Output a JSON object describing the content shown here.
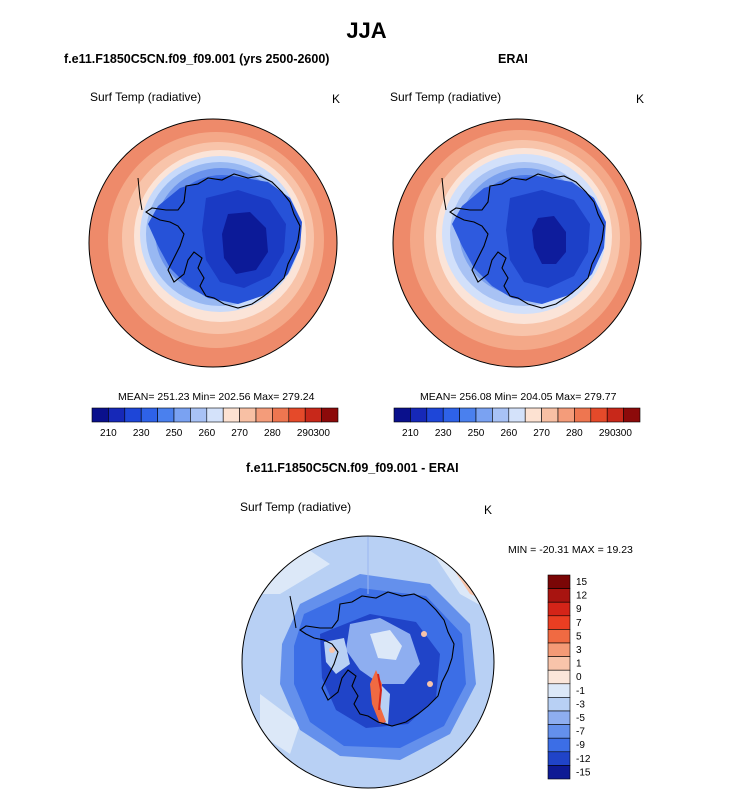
{
  "season_title": "JJA",
  "panels": {
    "model": {
      "title": "f.e11.F1850C5CN.f09_f09.001 (yrs 2500-2600)",
      "variable_label": "Surf Temp (radiative)",
      "units": "K",
      "stats": "MEAN= 251.23  Min= 202.56  Max= 279.24"
    },
    "obs": {
      "title": "ERAI",
      "variable_label": "Surf Temp (radiative)",
      "units": "K",
      "stats": "MEAN= 256.08  Min= 204.05  Max= 279.77"
    },
    "diff": {
      "title": "f.e11.F1850C5CN.f09_f09.001 - ERAI",
      "variable_label": "Surf Temp (radiative)",
      "units": "K",
      "stats": "MIN = -20.31  MAX =  19.23"
    }
  },
  "colorbars": {
    "abs_tick_labels": [
      "210",
      "230",
      "250",
      "260",
      "270",
      "280",
      "290",
      "300"
    ],
    "abs_colors": [
      "#0a108c",
      "#1628b8",
      "#1e46d8",
      "#2e62e8",
      "#4a80ee",
      "#7aa2f2",
      "#a8c2f6",
      "#d4e2fa",
      "#fde2d2",
      "#f8c0a4",
      "#f49c7a",
      "#ee7650",
      "#e54a2a",
      "#c8281a",
      "#8c0a0a"
    ],
    "diff_tick_labels": [
      "15",
      "12",
      "9",
      "7",
      "5",
      "3",
      "1",
      "0",
      "-1",
      "-3",
      "-5",
      "-7",
      "-9",
      "-12",
      "-15"
    ],
    "diff_colors": [
      "#7a0606",
      "#a81410",
      "#d42418",
      "#ea3e22",
      "#f06a42",
      "#f49a76",
      "#f8c4aa",
      "#fbe6da",
      "#dce8f8",
      "#b8d0f4",
      "#8eaef0",
      "#6490ec",
      "#3c6ee6",
      "#2044c8",
      "#0e1a94"
    ]
  },
  "chart_data": [
    {
      "type": "heatmap",
      "title": "f.e11.F1850C5CN.f09_f09.001 (yrs 2500-2600)",
      "projection": "south polar stereographic",
      "variable": "Surf Temp (radiative)",
      "units": "K",
      "mean": 251.23,
      "min": 202.56,
      "max": 279.24,
      "color_levels": [
        205,
        210,
        220,
        230,
        240,
        250,
        255,
        260,
        265,
        270,
        275,
        280,
        285,
        290,
        295,
        300
      ]
    },
    {
      "type": "heatmap",
      "title": "ERAI",
      "projection": "south polar stereographic",
      "variable": "Surf Temp (radiative)",
      "units": "K",
      "mean": 256.08,
      "min": 204.05,
      "max": 279.77,
      "color_levels": [
        205,
        210,
        220,
        230,
        240,
        250,
        255,
        260,
        265,
        270,
        275,
        280,
        285,
        290,
        295,
        300
      ]
    },
    {
      "type": "heatmap",
      "title": "f.e11.F1850C5CN.f09_f09.001 - ERAI",
      "projection": "south polar stereographic",
      "variable": "Surf Temp (radiative)",
      "units": "K",
      "min": -20.31,
      "max": 19.23,
      "color_levels": [
        -15,
        -12,
        -9,
        -7,
        -5,
        -3,
        -1,
        0,
        1,
        3,
        5,
        7,
        9,
        12,
        15
      ]
    }
  ]
}
